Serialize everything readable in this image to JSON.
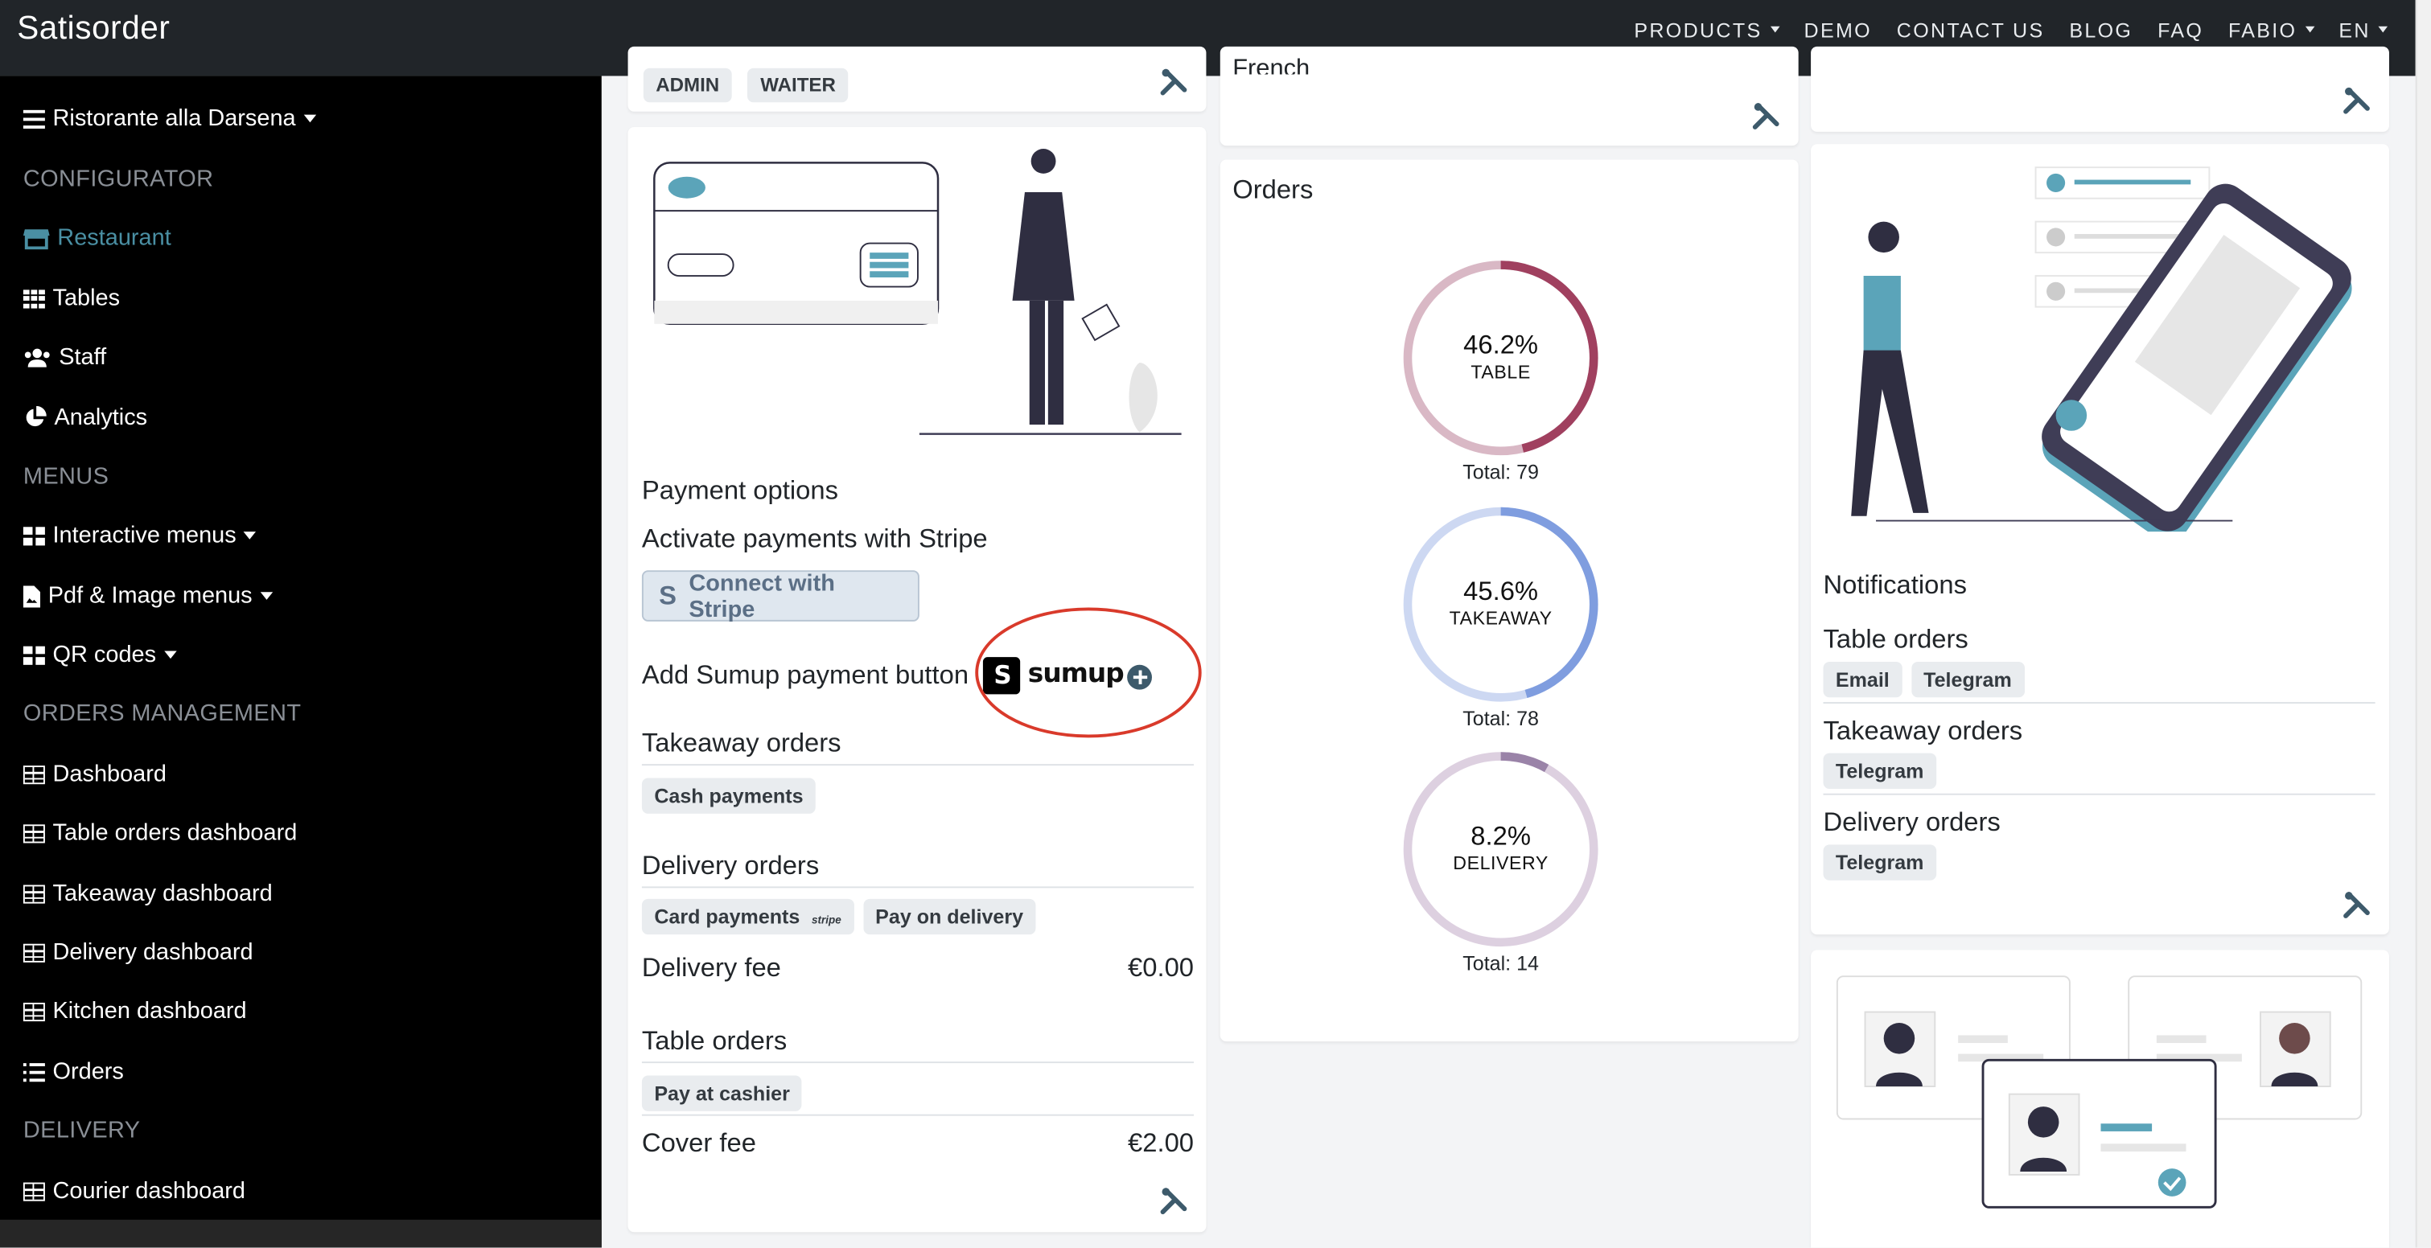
{
  "navbar": {
    "brand": "Satisorder",
    "links": [
      "PRODUCTS",
      "DEMO",
      "CONTACT US",
      "BLOG",
      "FAQ",
      "FABIO",
      "EN"
    ]
  },
  "sidebar": {
    "restaurant_name": "Ristorante alla Darsena",
    "sections": {
      "configurator": "CONFIGURATOR",
      "menus": "MENUS",
      "orders_management": "ORDERS MANAGEMENT",
      "delivery": "DELIVERY"
    },
    "items": {
      "restaurant": "Restaurant",
      "tables": "Tables",
      "staff": "Staff",
      "analytics": "Analytics",
      "interactive_menus": "Interactive menus",
      "pdf_image_menus": "Pdf & Image menus",
      "qr_codes": "QR codes",
      "dashboard": "Dashboard",
      "table_orders_dashboard": "Table orders dashboard",
      "takeaway_dashboard": "Takeaway dashboard",
      "delivery_dashboard": "Delivery dashboard",
      "kitchen_dashboard": "Kitchen dashboard",
      "orders": "Orders",
      "courier_dashboard": "Courier dashboard"
    }
  },
  "top_cards": {
    "roles": [
      "ADMIN",
      "WAITER"
    ],
    "language_partial": "French"
  },
  "payments_card": {
    "title": "Payment options",
    "stripe_text": "Activate payments with Stripe",
    "stripe_button": "Connect with Stripe",
    "sumup_text": "Add Sumup payment button",
    "sumup_logo": "sumup",
    "takeaway": {
      "title": "Takeaway orders",
      "badges": [
        "Cash payments"
      ]
    },
    "delivery": {
      "title": "Delivery orders",
      "badges": [
        "Card payments",
        "Pay on delivery"
      ],
      "stripe_mini": "stripe",
      "fee_label": "Delivery fee",
      "fee_value": "€0.00"
    },
    "table": {
      "title": "Table orders",
      "badges": [
        "Pay at cashier"
      ],
      "fee_label": "Cover fee",
      "fee_value": "€2.00"
    }
  },
  "orders_card": {
    "title": "Orders"
  },
  "chart_data": {
    "type": "pie",
    "title": "Orders",
    "categories": [
      "TABLE",
      "TAKEAWAY",
      "DELIVERY"
    ],
    "values": [
      46.2,
      45.6,
      8.2
    ],
    "labels": [
      "46.2%",
      "45.6%",
      "8.2%"
    ],
    "totals": [
      79,
      78,
      14
    ],
    "total_labels": [
      "Total: 79",
      "Total: 78",
      "Total: 14"
    ],
    "colors": [
      "#a0405f",
      "#7f9ddf",
      "#9a83a8"
    ],
    "track_colors": [
      "#d9b8c5",
      "#cdd8f2",
      "#ddd0e0"
    ]
  },
  "notifications_card": {
    "title": "Notifications",
    "groups": [
      {
        "title": "Table orders",
        "badges": [
          "Email",
          "Telegram"
        ]
      },
      {
        "title": "Takeaway orders",
        "badges": [
          "Telegram"
        ]
      },
      {
        "title": "Delivery orders",
        "badges": [
          "Telegram"
        ]
      }
    ]
  },
  "colors": {
    "navbar": "#212529",
    "sidebar": "#000000",
    "active": "#4a8fa3",
    "accent": "#5ba4b9",
    "annotation": "#d93a2b"
  }
}
